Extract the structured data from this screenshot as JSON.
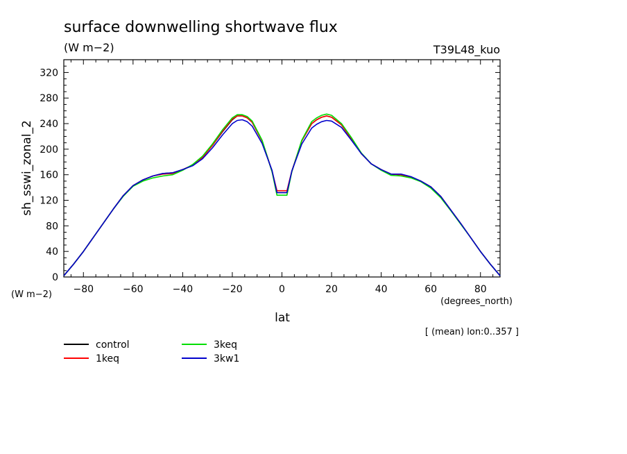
{
  "chart_data": {
    "type": "line",
    "title": "surface downwelling shortwave flux",
    "units_label": "(W m−2)",
    "run_label": "T39L48_kuo",
    "ylabel": "sh_sswi_zonal_2",
    "y_units": "(W m−2)",
    "xlabel": "lat",
    "x_units": "(degrees_north)",
    "footnote": "[ (mean) lon:0..357 ]",
    "xlim": [
      -87.9,
      87.9
    ],
    "ylim": [
      0,
      340
    ],
    "x_ticks": [
      -80,
      -60,
      -40,
      -20,
      0,
      20,
      40,
      60,
      80
    ],
    "y_ticks": [
      0,
      40,
      80,
      120,
      160,
      200,
      240,
      280,
      320
    ],
    "grid": false,
    "legend_placement": "bottom-left",
    "x": [
      -87.9,
      -84,
      -80,
      -76,
      -72,
      -68,
      -64,
      -60,
      -56,
      -52,
      -48,
      -44,
      -40,
      -36,
      -32,
      -28,
      -24,
      -20,
      -18,
      -16,
      -14,
      -12,
      -8,
      -4,
      -2,
      0,
      2,
      4,
      8,
      12,
      14,
      16,
      18,
      20,
      24,
      28,
      32,
      36,
      40,
      44,
      48,
      52,
      56,
      60,
      64,
      68,
      72,
      76,
      80,
      84,
      87.9
    ],
    "series": [
      {
        "name": "control",
        "color": "#000000",
        "values": [
          2,
          20,
          40,
          62,
          84,
          106,
          127,
          143,
          152,
          158,
          162,
          163,
          168,
          175,
          187,
          206,
          227,
          246,
          252,
          252,
          249,
          242,
          213,
          165,
          132,
          132,
          132,
          165,
          213,
          240,
          246,
          250,
          252,
          250,
          238,
          216,
          193,
          177,
          168,
          161,
          160,
          156,
          150,
          141,
          126,
          105,
          84,
          62,
          40,
          20,
          2
        ]
      },
      {
        "name": "1keq",
        "color": "#ff0000",
        "values": [
          2,
          20,
          40,
          62,
          84,
          106,
          127,
          143,
          152,
          158,
          161,
          162,
          168,
          175,
          187,
          206,
          228,
          247,
          252,
          252,
          249,
          242,
          213,
          166,
          135,
          135,
          135,
          166,
          213,
          240,
          246,
          250,
          252,
          250,
          238,
          216,
          193,
          177,
          168,
          161,
          160,
          156,
          150,
          141,
          126,
          105,
          84,
          62,
          40,
          20,
          2
        ]
      },
      {
        "name": "3keq",
        "color": "#00dd00",
        "values": [
          2,
          20,
          40,
          62,
          84,
          106,
          126,
          142,
          150,
          155,
          158,
          160,
          167,
          176,
          189,
          208,
          230,
          249,
          254,
          254,
          251,
          244,
          214,
          165,
          128,
          128,
          128,
          165,
          214,
          243,
          249,
          253,
          255,
          253,
          240,
          218,
          194,
          177,
          167,
          159,
          158,
          155,
          149,
          139,
          124,
          104,
          83,
          62,
          40,
          20,
          2
        ]
      },
      {
        "name": "3kw1",
        "color": "#0000cc",
        "values": [
          2,
          20,
          40,
          62,
          84,
          106,
          127,
          143,
          152,
          158,
          162,
          163,
          168,
          174,
          185,
          202,
          222,
          240,
          245,
          246,
          243,
          236,
          209,
          167,
          132,
          132,
          132,
          166,
          208,
          233,
          239,
          243,
          245,
          244,
          234,
          214,
          193,
          177,
          168,
          161,
          161,
          157,
          150,
          141,
          126,
          105,
          84,
          62,
          40,
          20,
          2
        ]
      }
    ]
  }
}
